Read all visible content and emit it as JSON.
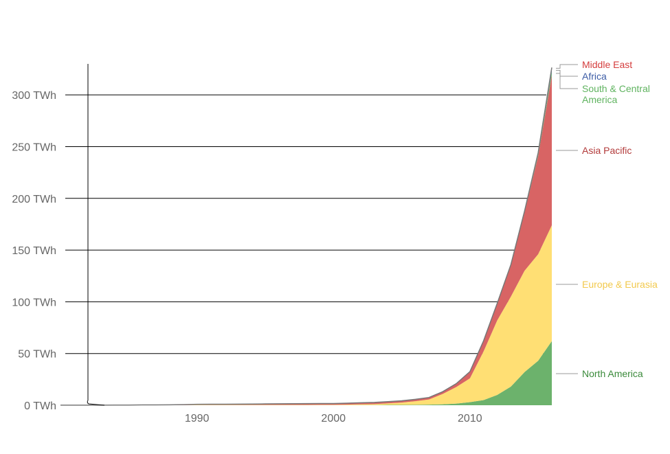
{
  "chart_data": {
    "type": "area",
    "stacked": true,
    "title": "",
    "xlabel": "",
    "ylabel": "",
    "unit": "TWh",
    "xlim": [
      1980,
      2016
    ],
    "ylim": [
      0,
      330
    ],
    "y_ticks": [
      0,
      50,
      100,
      150,
      200,
      250,
      300
    ],
    "y_tick_labels": [
      "0 TWh",
      "50 TWh",
      "100 TWh",
      "150 TWh",
      "200 TWh",
      "250 TWh",
      "300 TWh"
    ],
    "x_ticks": [
      1990,
      2000,
      2010
    ],
    "x_tick_labels": [
      "1990",
      "2000",
      "2010"
    ],
    "grid": "horizontal",
    "legend": "right-labels",
    "x": [
      1980,
      1981,
      1982,
      1983,
      1984,
      1985,
      1986,
      1987,
      1988,
      1989,
      1990,
      1991,
      1992,
      1993,
      1994,
      1995,
      1996,
      1997,
      1998,
      1999,
      2000,
      2001,
      2002,
      2003,
      2004,
      2005,
      2006,
      2007,
      2008,
      2009,
      2010,
      2011,
      2012,
      2013,
      2014,
      2015,
      2016
    ],
    "series": [
      {
        "name": "North America",
        "color": "#6cb26c",
        "label_color": "#3a8a3a",
        "values": [
          0,
          0,
          0,
          0,
          0,
          0,
          0,
          0,
          0,
          0,
          0.1,
          0.1,
          0.1,
          0.1,
          0.1,
          0.1,
          0.1,
          0.1,
          0.1,
          0.1,
          0.1,
          0.1,
          0.2,
          0.2,
          0.3,
          0.3,
          0.4,
          0.6,
          0.9,
          1.6,
          3,
          5,
          10,
          18,
          32,
          43,
          62
        ]
      },
      {
        "name": "Europe & Eurasia",
        "color": "#ffdf74",
        "label_color": "#f2c94c",
        "values": [
          0,
          0,
          0,
          0,
          0,
          0,
          0,
          0,
          0,
          0.1,
          0.2,
          0.2,
          0.2,
          0.2,
          0.2,
          0.2,
          0.2,
          0.2,
          0.2,
          0.3,
          0.3,
          0.5,
          0.7,
          0.9,
          1.5,
          2.3,
          3.5,
          5,
          10,
          16,
          23,
          47,
          72,
          87,
          98,
          103,
          112
        ]
      },
      {
        "name": "Asia Pacific",
        "color": "#d86464",
        "label_color": "#b23a3a",
        "values": [
          0.1,
          0.1,
          0.1,
          0.1,
          0.2,
          0.2,
          0.3,
          0.3,
          0.4,
          0.5,
          0.6,
          0.7,
          0.7,
          0.8,
          0.9,
          1,
          1.1,
          1.2,
          1.3,
          1.3,
          1.3,
          1.4,
          1.5,
          1.6,
          1.7,
          1.7,
          1.8,
          1.9,
          2.2,
          3.3,
          6.5,
          10,
          16,
          30,
          56,
          95,
          145
        ]
      },
      {
        "name": "South & Central America",
        "color": "#74c274",
        "label_color": "#5fb35f",
        "values": [
          0,
          0,
          0,
          0,
          0,
          0,
          0,
          0,
          0,
          0,
          0,
          0,
          0,
          0,
          0,
          0,
          0,
          0,
          0,
          0,
          0,
          0,
          0,
          0,
          0,
          0,
          0,
          0,
          0,
          0,
          0,
          0.1,
          0.2,
          0.4,
          0.7,
          1.5,
          3.5
        ]
      },
      {
        "name": "Africa",
        "color": "#4c6fb8",
        "label_color": "#3b5ba5",
        "values": [
          0,
          0,
          0,
          0,
          0,
          0,
          0,
          0,
          0,
          0,
          0,
          0,
          0,
          0,
          0,
          0,
          0,
          0,
          0,
          0,
          0,
          0,
          0,
          0,
          0,
          0,
          0,
          0,
          0,
          0,
          0,
          0.1,
          0.2,
          0.3,
          0.5,
          1,
          2.5
        ]
      },
      {
        "name": "Middle East",
        "color": "#e05252",
        "label_color": "#d43c3c",
        "values": [
          0,
          0,
          0,
          0,
          0,
          0,
          0,
          0,
          0,
          0,
          0,
          0,
          0,
          0,
          0,
          0,
          0,
          0,
          0,
          0,
          0,
          0,
          0,
          0,
          0,
          0,
          0,
          0,
          0,
          0,
          0,
          0.1,
          0.1,
          0.2,
          0.3,
          0.6,
          1.5
        ]
      }
    ]
  }
}
